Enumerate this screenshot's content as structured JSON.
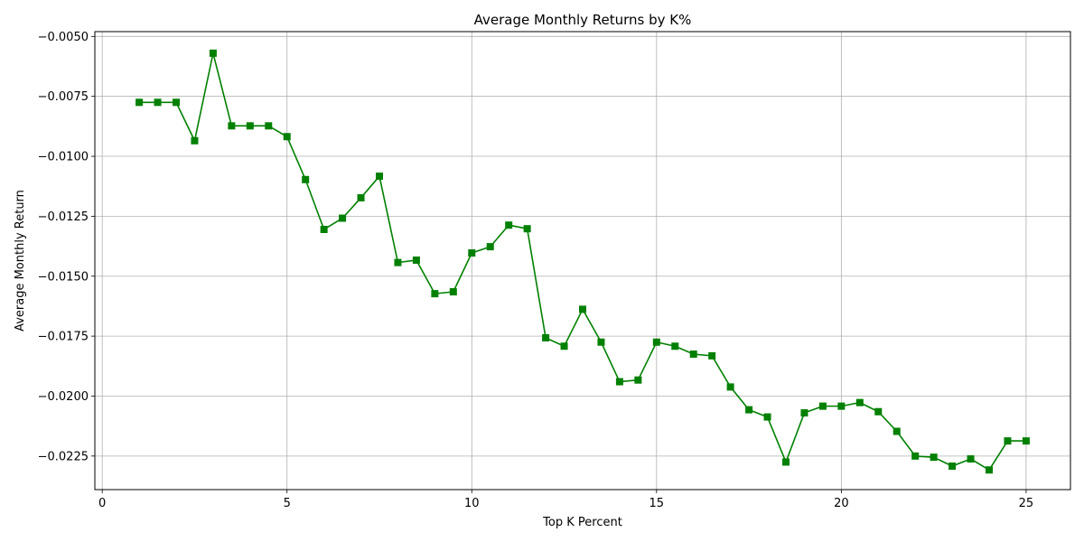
{
  "chart_data": {
    "type": "line",
    "title": "Average Monthly Returns by K%",
    "xlabel": "Top K Percent",
    "ylabel": "Average Monthly Return",
    "xlim": [
      -0.2,
      26.2
    ],
    "ylim": [
      -0.0239,
      -0.0048
    ],
    "xticks": [
      0,
      5,
      10,
      15,
      20,
      25
    ],
    "xtick_labels": [
      "0",
      "5",
      "10",
      "15",
      "20",
      "25"
    ],
    "yticks": [
      -0.005,
      -0.0075,
      -0.01,
      -0.0125,
      -0.015,
      -0.0175,
      -0.02,
      -0.0225
    ],
    "ytick_labels": [
      "−0.0050",
      "−0.0075",
      "−0.0100",
      "−0.0125",
      "−0.0150",
      "−0.0175",
      "−0.0200",
      "−0.0225"
    ],
    "grid": true,
    "series": [
      {
        "color": "#008000",
        "marker": "square",
        "x": [
          1.0,
          1.5,
          2.0,
          2.5,
          3.0,
          3.5,
          4.0,
          4.5,
          5.0,
          5.5,
          6.0,
          6.5,
          7.0,
          7.5,
          8.0,
          8.5,
          9.0,
          9.5,
          10.0,
          10.5,
          11.0,
          11.5,
          12.0,
          12.5,
          13.0,
          13.5,
          14.0,
          14.5,
          15.0,
          15.5,
          16.0,
          16.5,
          17.0,
          17.5,
          18.0,
          18.5,
          19.0,
          19.5,
          20.0,
          20.5,
          21.0,
          21.5,
          22.0,
          22.5,
          23.0,
          23.5,
          24.0,
          24.5,
          25.0
        ],
        "y": [
          -0.00775,
          -0.00775,
          -0.00775,
          -0.00935,
          -0.0057,
          -0.00873,
          -0.00873,
          -0.00873,
          -0.00918,
          -0.01097,
          -0.01305,
          -0.01258,
          -0.01173,
          -0.01083,
          -0.01443,
          -0.01433,
          -0.01573,
          -0.01565,
          -0.01403,
          -0.01377,
          -0.01287,
          -0.01302,
          -0.01757,
          -0.01792,
          -0.01638,
          -0.01775,
          -0.0194,
          -0.01933,
          -0.01775,
          -0.01792,
          -0.01825,
          -0.01832,
          -0.01962,
          -0.02057,
          -0.02087,
          -0.02275,
          -0.0207,
          -0.02042,
          -0.02042,
          -0.02027,
          -0.02065,
          -0.02147,
          -0.0225,
          -0.02255,
          -0.02292,
          -0.02262,
          -0.02308,
          -0.02187,
          -0.02187
        ]
      }
    ]
  }
}
